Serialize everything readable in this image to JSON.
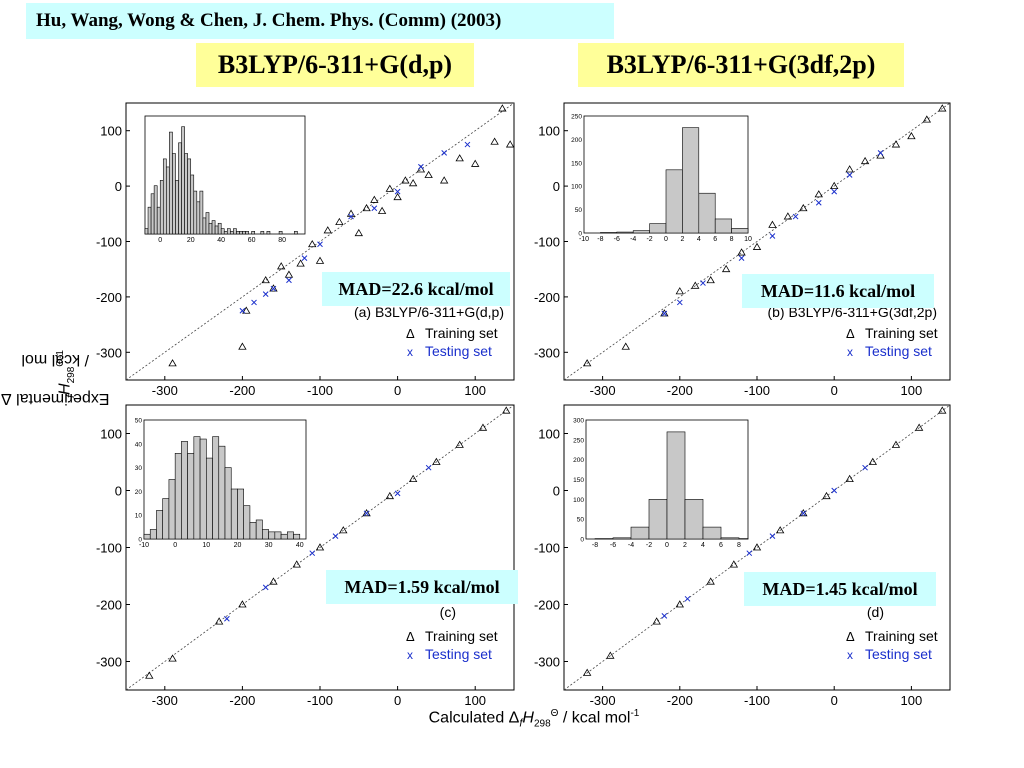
{
  "citation": "Hu, Wang, Wong & Chen, J. Chem. Phys. (Comm) (2003)",
  "header_left": "B3LYP/6-311+G(d,p)",
  "header_right": "B3LYP/6-311+G(3df,2p)",
  "ylabel": {
    "pre": "Experimental Δ",
    "f": "f",
    "H": "H",
    "sub": "298",
    "sup": "Θ",
    "post": " / kcal mol",
    "post_sup": "-1"
  },
  "xlabel": {
    "pre": "Calculated Δ",
    "f": "f",
    "H": "H",
    "sub": "298",
    "sup": "Θ",
    "post": " / kcal mol",
    "post_sup": "-1"
  },
  "legend": {
    "training": "Training set",
    "testing": "Testing set",
    "training_marker": "Δ",
    "testing_marker": "x"
  },
  "colors": {
    "training": "#000000",
    "testing": "#1a2fcc",
    "hist_fill": "#c8c8c8",
    "mad_bg": "#ccffff",
    "header_bg": "#ffff99"
  },
  "panels": [
    {
      "id": "a",
      "mad": "MAD=22.6 kcal/mol",
      "caption": "(a) B3LYP/6-311+G(d,p)"
    },
    {
      "id": "b",
      "mad": "MAD=11.6 kcal/mol",
      "caption": "(b) B3LYP/6-311+G(3df,2p)"
    },
    {
      "id": "c",
      "mad": "MAD=1.59 kcal/mol",
      "caption": "(c)"
    },
    {
      "id": "d",
      "mad": "MAD=1.45 kcal/mol",
      "caption": "(d)"
    }
  ],
  "chart_data": [
    {
      "type": "scatter",
      "panel": "a",
      "xlim": [
        -350,
        150
      ],
      "ylim": [
        -350,
        150
      ],
      "x_ticks": [
        -300,
        -200,
        -100,
        0,
        100
      ],
      "y_ticks": [
        100,
        0,
        -100,
        -200,
        -300
      ],
      "diagonal": true,
      "series": [
        {
          "name": "Training set",
          "marker": "triangle",
          "x": [
            -290,
            -200,
            -195,
            -170,
            -160,
            -150,
            -140,
            -125,
            -110,
            -100,
            -90,
            -75,
            -60,
            -50,
            -40,
            -30,
            -20,
            -10,
            0,
            10,
            20,
            30,
            40,
            60,
            80,
            100,
            125,
            135,
            145
          ],
          "y": [
            -320,
            -290,
            -225,
            -170,
            -185,
            -145,
            -160,
            -140,
            -105,
            -135,
            -80,
            -65,
            -50,
            -85,
            -40,
            -25,
            -45,
            -5,
            -20,
            10,
            5,
            30,
            20,
            10,
            50,
            40,
            80,
            140,
            75
          ]
        },
        {
          "name": "Testing set",
          "marker": "x",
          "x": [
            -200,
            -185,
            -170,
            -160,
            -140,
            -120,
            -100,
            -60,
            -30,
            0,
            30,
            60,
            90
          ],
          "y": [
            -225,
            -210,
            -195,
            -185,
            -170,
            -130,
            -105,
            -55,
            -40,
            -10,
            35,
            60,
            75
          ]
        }
      ],
      "inset": {
        "type": "histogram",
        "bin_start": -10,
        "bin_width": 2,
        "xlim": [
          -10,
          95
        ],
        "x_ticks": [
          0,
          20,
          40,
          60,
          80
        ],
        "counts": [
          2,
          10,
          15,
          18,
          10,
          20,
          28,
          25,
          38,
          30,
          20,
          34,
          40,
          30,
          28,
          22,
          16,
          12,
          16,
          6,
          8,
          4,
          5,
          3,
          4,
          2,
          1,
          2,
          1,
          2,
          1,
          1,
          1,
          1,
          0,
          1,
          0,
          0,
          1,
          0,
          1,
          0,
          0,
          0,
          1,
          0,
          0,
          0,
          0,
          1
        ]
      }
    },
    {
      "type": "scatter",
      "panel": "b",
      "xlim": [
        -350,
        150
      ],
      "ylim": [
        -350,
        150
      ],
      "x_ticks": [
        -300,
        -200,
        -100,
        0,
        100
      ],
      "y_ticks": [
        100,
        0,
        -100,
        -200,
        -300
      ],
      "diagonal": true,
      "series": [
        {
          "name": "Training set",
          "marker": "triangle",
          "x": [
            -320,
            -270,
            -220,
            -200,
            -180,
            -160,
            -140,
            -120,
            -100,
            -80,
            -60,
            -40,
            -20,
            0,
            20,
            40,
            60,
            80,
            100,
            120,
            140
          ],
          "y": [
            -320,
            -290,
            -230,
            -190,
            -180,
            -170,
            -150,
            -120,
            -110,
            -70,
            -55,
            -40,
            -15,
            0,
            30,
            45,
            55,
            75,
            90,
            120,
            140
          ]
        },
        {
          "name": "Testing set",
          "marker": "x",
          "x": [
            -220,
            -200,
            -170,
            -120,
            -80,
            -50,
            -20,
            0,
            20,
            60
          ],
          "y": [
            -230,
            -210,
            -175,
            -130,
            -90,
            -55,
            -30,
            -10,
            20,
            60
          ]
        }
      ],
      "inset": {
        "type": "histogram",
        "bin_start": -10,
        "bin_width": 2,
        "xlim": [
          -10,
          10
        ],
        "x_ticks": [
          -10,
          -8,
          -6,
          -4,
          -2,
          0,
          2,
          4,
          6,
          8,
          10
        ],
        "y_ticks": [
          0,
          50,
          100,
          150,
          200,
          250
        ],
        "counts": [
          0,
          1,
          2,
          5,
          20,
          135,
          225,
          85,
          30,
          10
        ]
      }
    },
    {
      "type": "scatter",
      "panel": "c",
      "xlim": [
        -350,
        150
      ],
      "ylim": [
        -350,
        150
      ],
      "x_ticks": [
        -300,
        -200,
        -100,
        0,
        100
      ],
      "y_ticks": [
        100,
        0,
        -100,
        -200,
        -300
      ],
      "diagonal": true,
      "series": [
        {
          "name": "Training set",
          "marker": "triangle",
          "x": [
            -320,
            -290,
            -230,
            -200,
            -160,
            -130,
            -100,
            -70,
            -40,
            -10,
            20,
            50,
            80,
            110,
            140
          ],
          "y": [
            -325,
            -295,
            -230,
            -200,
            -160,
            -130,
            -100,
            -70,
            -40,
            -10,
            20,
            50,
            80,
            110,
            140
          ]
        },
        {
          "name": "Testing set",
          "marker": "x",
          "x": [
            -220,
            -170,
            -110,
            -80,
            -40,
            0,
            40
          ],
          "y": [
            -225,
            -170,
            -110,
            -80,
            -40,
            -5,
            40
          ]
        }
      ],
      "inset": {
        "type": "histogram",
        "bin_start": -10,
        "bin_width": 2,
        "xlim": [
          -10,
          42
        ],
        "x_ticks": [
          -10,
          0,
          10,
          20,
          30,
          40
        ],
        "y_ticks": [
          0,
          10,
          20,
          30,
          40,
          50
        ],
        "counts": [
          2,
          4,
          12,
          17,
          25,
          36,
          41,
          36,
          43,
          42,
          34,
          43,
          39,
          30,
          21,
          21,
          14,
          7,
          8,
          4,
          3,
          3,
          2,
          3,
          2
        ]
      }
    },
    {
      "type": "scatter",
      "panel": "d",
      "xlim": [
        -350,
        150
      ],
      "ylim": [
        -350,
        150
      ],
      "x_ticks": [
        -300,
        -200,
        -100,
        0,
        100
      ],
      "y_ticks": [
        100,
        0,
        -100,
        -200,
        -300
      ],
      "diagonal": true,
      "series": [
        {
          "name": "Training set",
          "marker": "triangle",
          "x": [
            -320,
            -290,
            -230,
            -200,
            -160,
            -130,
            -100,
            -70,
            -40,
            -10,
            20,
            50,
            80,
            110,
            140
          ],
          "y": [
            -320,
            -290,
            -230,
            -200,
            -160,
            -130,
            -100,
            -70,
            -40,
            -10,
            20,
            50,
            80,
            110,
            140
          ]
        },
        {
          "name": "Testing set",
          "marker": "x",
          "x": [
            -220,
            -190,
            -110,
            -80,
            -40,
            0,
            40
          ],
          "y": [
            -220,
            -190,
            -110,
            -80,
            -40,
            0,
            40
          ]
        }
      ],
      "inset": {
        "type": "histogram",
        "bin_start": -10,
        "bin_width": 2,
        "xlim": [
          -9,
          9
        ],
        "x_ticks": [
          -8,
          -6,
          -4,
          -2,
          0,
          2,
          4,
          6,
          8
        ],
        "y_ticks": [
          0,
          50,
          100,
          150,
          200,
          250,
          300
        ],
        "counts": [
          0,
          1,
          3,
          30,
          100,
          270,
          100,
          30,
          3,
          1
        ]
      }
    }
  ]
}
